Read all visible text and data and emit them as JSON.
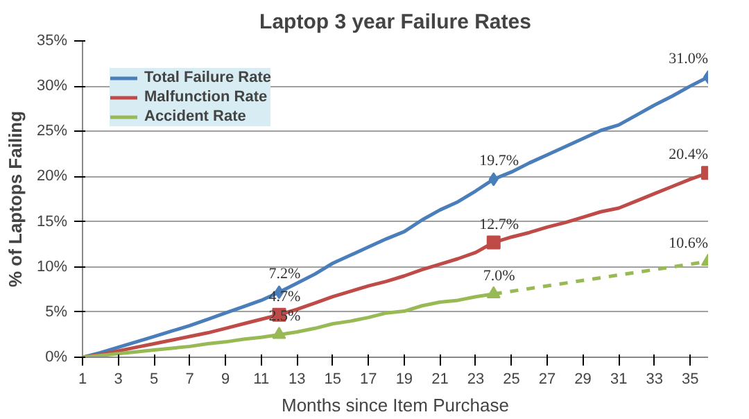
{
  "chart_data": {
    "type": "line",
    "title": "Laptop 3 year Failure Rates",
    "xlabel": "Months since Item Purchase",
    "ylabel": "% of Laptops Failing",
    "x": [
      1,
      2,
      3,
      4,
      5,
      6,
      7,
      8,
      9,
      10,
      11,
      12,
      13,
      14,
      15,
      16,
      17,
      18,
      19,
      20,
      21,
      22,
      23,
      24,
      25,
      26,
      27,
      28,
      29,
      30,
      31,
      32,
      33,
      34,
      35,
      36
    ],
    "series": [
      {
        "name": "Total Failure Rate",
        "color": "#4a7ebb",
        "line_style": "solid",
        "values": [
          0,
          0.5,
          1.1,
          1.7,
          2.3,
          2.9,
          3.5,
          4.2,
          4.9,
          5.6,
          6.3,
          7.2,
          8.2,
          9.2,
          10.4,
          11.3,
          12.2,
          13.1,
          13.9,
          15.2,
          16.3,
          17.2,
          18.4,
          19.7,
          20.5,
          21.5,
          22.4,
          23.3,
          24.2,
          25.1,
          25.7,
          26.8,
          27.9,
          28.9,
          30.0,
          31.0
        ]
      },
      {
        "name": "Malfunction Rate",
        "color": "#be4b48",
        "line_style": "solid",
        "values": [
          0,
          0.3,
          0.7,
          1.1,
          1.5,
          1.9,
          2.3,
          2.7,
          3.2,
          3.7,
          4.2,
          4.7,
          5.3,
          6.0,
          6.7,
          7.3,
          7.9,
          8.4,
          9.0,
          9.7,
          10.3,
          10.9,
          11.6,
          12.7,
          13.3,
          13.8,
          14.4,
          14.9,
          15.5,
          16.1,
          16.5,
          17.3,
          18.1,
          18.9,
          19.7,
          20.4
        ]
      },
      {
        "name": "Accident Rate",
        "color": "#98b954",
        "line_style": "solid",
        "x": [
          1,
          2,
          3,
          4,
          5,
          6,
          7,
          8,
          9,
          10,
          11,
          12,
          13,
          14,
          15,
          16,
          17,
          18,
          19,
          20,
          21,
          22,
          23,
          24
        ],
        "values": [
          0,
          0.2,
          0.4,
          0.6,
          0.8,
          1.0,
          1.2,
          1.5,
          1.7,
          2.0,
          2.2,
          2.5,
          2.8,
          3.2,
          3.7,
          4.0,
          4.4,
          4.9,
          5.1,
          5.7,
          6.1,
          6.3,
          6.7,
          7.0
        ]
      },
      {
        "color": "#98b954",
        "line_style": "dashed",
        "x": [
          24,
          36
        ],
        "values": [
          7.0,
          10.6
        ]
      },
      {
        "type": "scatter",
        "color": "#4a7ebb",
        "marker": "diamond",
        "x": [
          12,
          24,
          36
        ],
        "values": [
          7.2,
          19.7,
          31.0
        ],
        "value_labels": [
          "7.2%",
          "19.7%",
          "31.0%"
        ]
      },
      {
        "type": "scatter",
        "color": "#be4b48",
        "marker": "square",
        "x": [
          12,
          24,
          36
        ],
        "values": [
          4.7,
          12.7,
          20.4
        ],
        "value_labels": [
          "4.7%",
          "12.7%",
          "20.4%"
        ]
      },
      {
        "type": "scatter",
        "color": "#98b954",
        "marker": "triangle",
        "x": [
          12,
          24,
          36
        ],
        "values": [
          2.5,
          7.0,
          10.6
        ],
        "value_labels": [
          "2.5%",
          "7.0%",
          "10.6%"
        ]
      }
    ],
    "xlim": [
      1,
      36
    ],
    "xticks": [
      1,
      3,
      5,
      7,
      9,
      11,
      13,
      15,
      17,
      19,
      21,
      23,
      25,
      27,
      29,
      31,
      33,
      35
    ],
    "ylim": [
      0,
      35
    ],
    "yticks": [
      {
        "value": 0,
        "label": "0%"
      },
      {
        "value": 5,
        "label": "5%"
      },
      {
        "value": 10,
        "label": "10%"
      },
      {
        "value": 15,
        "label": "15%"
      },
      {
        "value": 20,
        "label": "20%"
      },
      {
        "value": 25,
        "label": "25%"
      },
      {
        "value": 30,
        "label": "30%"
      },
      {
        "value": 35,
        "label": "35%"
      }
    ],
    "grid": "y",
    "legend": "top left"
  }
}
